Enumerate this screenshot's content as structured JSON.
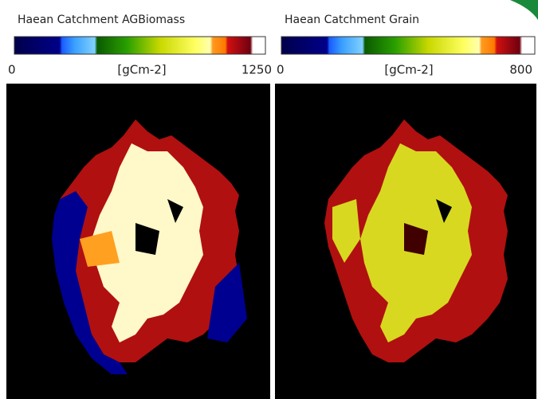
{
  "panels": [
    {
      "title": "Haean  Catchment  AGBiomass",
      "min_label": 0,
      "unit": "[gCm-2]",
      "max_label": 1250
    },
    {
      "title": "Haean  Catchment   Grain",
      "min_label": 0,
      "unit": "[gCm-2]",
      "max_label": 800
    }
  ]
}
